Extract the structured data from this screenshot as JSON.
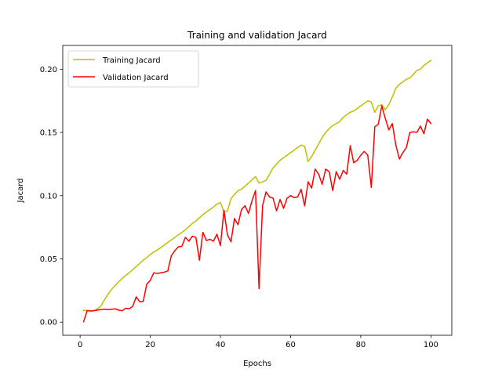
{
  "chart_data": {
    "type": "line",
    "title": "Training and validation Jacard",
    "xlabel": "Epochs",
    "ylabel": "Jacard",
    "xlim": [
      -4.95,
      105.95
    ],
    "ylim": [
      -0.0104,
      0.2188
    ],
    "x_ticks": [
      0,
      20,
      40,
      60,
      80,
      100
    ],
    "x_tick_labels": [
      "0",
      "20",
      "40",
      "60",
      "80",
      "100"
    ],
    "y_ticks": [
      0.0,
      0.05,
      0.1,
      0.15,
      0.2
    ],
    "y_tick_labels": [
      "0.00",
      "0.05",
      "0.10",
      "0.15",
      "0.20"
    ],
    "grid": false,
    "legend": {
      "placement": "upper-left"
    },
    "x": [
      1,
      2,
      3,
      4,
      5,
      6,
      7,
      8,
      9,
      10,
      11,
      12,
      13,
      14,
      15,
      16,
      17,
      18,
      19,
      20,
      21,
      22,
      23,
      24,
      25,
      26,
      27,
      28,
      29,
      30,
      31,
      32,
      33,
      34,
      35,
      36,
      37,
      38,
      39,
      40,
      41,
      42,
      43,
      44,
      45,
      46,
      47,
      48,
      49,
      50,
      51,
      52,
      53,
      54,
      55,
      56,
      57,
      58,
      59,
      60,
      61,
      62,
      63,
      64,
      65,
      66,
      67,
      68,
      69,
      70,
      71,
      72,
      73,
      74,
      75,
      76,
      77,
      78,
      79,
      80,
      81,
      82,
      83,
      84,
      85,
      86,
      87,
      88,
      89,
      90,
      91,
      92,
      93,
      94,
      95,
      96,
      97,
      98,
      99,
      100
    ],
    "series": [
      {
        "name": "Training Jacard",
        "color": "#bfbf00",
        "values": [
          0.0093,
          0.0093,
          0.0087,
          0.0093,
          0.0105,
          0.013,
          0.018,
          0.0223,
          0.026,
          0.029,
          0.032,
          0.0345,
          0.037,
          0.039,
          0.0415,
          0.044,
          0.0465,
          0.049,
          0.051,
          0.0535,
          0.0555,
          0.057,
          0.059,
          0.061,
          0.063,
          0.065,
          0.067,
          0.069,
          0.071,
          0.073,
          0.0755,
          0.078,
          0.08,
          0.0825,
          0.085,
          0.087,
          0.089,
          0.091,
          0.0935,
          0.0945,
          0.087,
          0.088,
          0.0975,
          0.101,
          0.104,
          0.105,
          0.1075,
          0.11,
          0.1125,
          0.115,
          0.11,
          0.111,
          0.112,
          0.117,
          0.122,
          0.125,
          0.128,
          0.13,
          0.132,
          0.134,
          0.136,
          0.138,
          0.14,
          0.139,
          0.127,
          0.131,
          0.136,
          0.141,
          0.146,
          0.15,
          0.153,
          0.1555,
          0.157,
          0.1585,
          0.162,
          0.164,
          0.166,
          0.167,
          0.169,
          0.171,
          0.173,
          0.175,
          0.174,
          0.166,
          0.171,
          0.172,
          0.168,
          0.172,
          0.178,
          0.185,
          0.188,
          0.19,
          0.192,
          0.193,
          0.196,
          0.199,
          0.2,
          0.203,
          0.205,
          0.207
        ]
      },
      {
        "name": "Validation Jacard",
        "color": "#ff0000",
        "values": [
          0.0003,
          0.009,
          0.0088,
          0.009,
          0.0095,
          0.01,
          0.0102,
          0.0098,
          0.0102,
          0.0105,
          0.0095,
          0.009,
          0.011,
          0.0105,
          0.0125,
          0.02,
          0.016,
          0.0165,
          0.03,
          0.033,
          0.039,
          0.0385,
          0.039,
          0.0395,
          0.0405,
          0.0525,
          0.0565,
          0.0595,
          0.06,
          0.067,
          0.064,
          0.068,
          0.067,
          0.049,
          0.071,
          0.0645,
          0.0655,
          0.064,
          0.0695,
          0.0605,
          0.0885,
          0.069,
          0.0635,
          0.082,
          0.077,
          0.089,
          0.092,
          0.086,
          0.096,
          0.104,
          0.0265,
          0.092,
          0.103,
          0.099,
          0.098,
          0.088,
          0.097,
          0.09,
          0.098,
          0.1,
          0.0985,
          0.099,
          0.105,
          0.092,
          0.111,
          0.106,
          0.121,
          0.117,
          0.109,
          0.121,
          0.119,
          0.104,
          0.119,
          0.113,
          0.12,
          0.117,
          0.1395,
          0.126,
          0.128,
          0.132,
          0.135,
          0.132,
          0.1065,
          0.1545,
          0.1565,
          0.171,
          0.161,
          0.152,
          0.157,
          0.14,
          0.129,
          0.134,
          0.138,
          0.15,
          0.1505,
          0.15,
          0.155,
          0.149,
          0.1605,
          0.157
        ]
      }
    ]
  }
}
